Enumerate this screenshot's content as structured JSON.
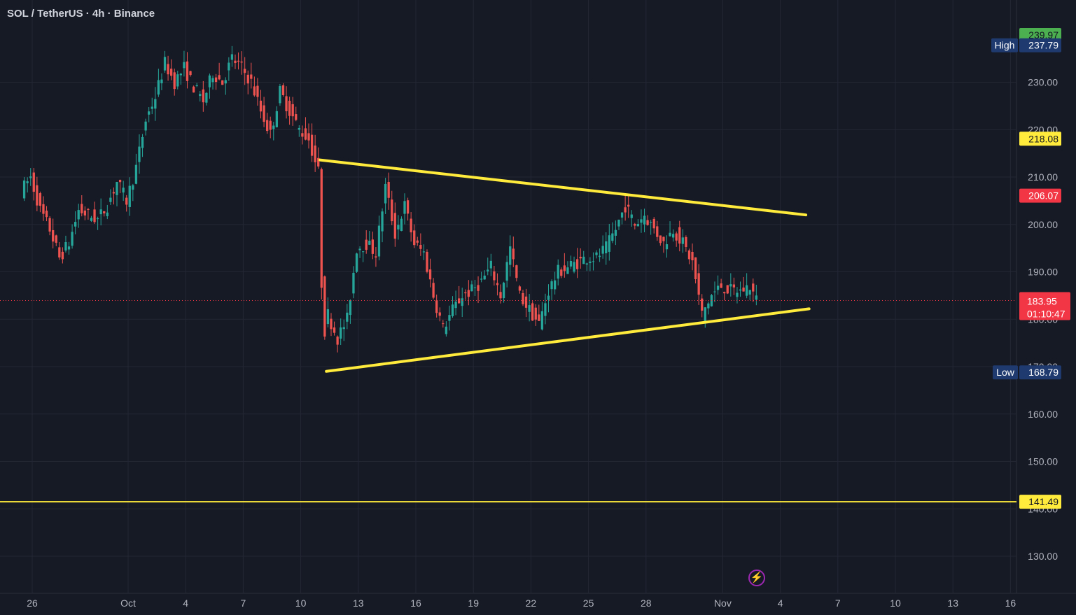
{
  "header": {
    "title": "SOL / TetherUS · 4h · Binance"
  },
  "colors": {
    "up": "#26a69a",
    "down": "#ef5350",
    "grid": "#232734",
    "trend": "#ffeb3b"
  },
  "chart_data": {
    "type": "candlestick",
    "symbol": "SOL / TetherUS",
    "interval": "4h",
    "exchange": "Binance",
    "x_ticks": [
      {
        "label": "26",
        "date": "2024-09-26"
      },
      {
        "label": "Oct",
        "date": "2024-10-01"
      },
      {
        "label": "4",
        "date": "2024-10-04"
      },
      {
        "label": "7",
        "date": "2024-10-07"
      },
      {
        "label": "10",
        "date": "2024-10-10"
      },
      {
        "label": "13",
        "date": "2024-10-13"
      },
      {
        "label": "16",
        "date": "2024-10-16"
      },
      {
        "label": "19",
        "date": "2024-10-19"
      },
      {
        "label": "22",
        "date": "2024-10-22"
      },
      {
        "label": "25",
        "date": "2024-10-25"
      },
      {
        "label": "28",
        "date": "2024-10-28"
      },
      {
        "label": "Nov",
        "date": "2024-11-01"
      },
      {
        "label": "4",
        "date": "2024-11-04"
      },
      {
        "label": "7",
        "date": "2024-11-07"
      },
      {
        "label": "10",
        "date": "2024-11-10"
      },
      {
        "label": "13",
        "date": "2024-11-13"
      },
      {
        "label": "16",
        "date": "2024-11-16"
      }
    ],
    "y_ticks": [
      "130.00",
      "140.00",
      "150.00",
      "160.00",
      "170.00",
      "180.00",
      "190.00",
      "200.00",
      "210.00",
      "220.00",
      "230.00"
    ],
    "ylim": [
      124,
      243
    ],
    "price_path": [
      {
        "date": "2024-09-25 12:00",
        "price": 207
      },
      {
        "date": "2024-09-26 00:00",
        "price": 210
      },
      {
        "date": "2024-09-26 12:00",
        "price": 203
      },
      {
        "date": "2024-09-27 00:00",
        "price": 199
      },
      {
        "date": "2024-09-27 12:00",
        "price": 193
      },
      {
        "date": "2024-09-28 00:00",
        "price": 196
      },
      {
        "date": "2024-09-28 12:00",
        "price": 203
      },
      {
        "date": "2024-09-29 00:00",
        "price": 202
      },
      {
        "date": "2024-09-29 12:00",
        "price": 201
      },
      {
        "date": "2024-09-30 00:00",
        "price": 204
      },
      {
        "date": "2024-09-30 12:00",
        "price": 209
      },
      {
        "date": "2024-10-01 00:00",
        "price": 205
      },
      {
        "date": "2024-10-01 12:00",
        "price": 212
      },
      {
        "date": "2024-10-02 00:00",
        "price": 222
      },
      {
        "date": "2024-10-02 12:00",
        "price": 227
      },
      {
        "date": "2024-10-03 00:00",
        "price": 234
      },
      {
        "date": "2024-10-03 12:00",
        "price": 230
      },
      {
        "date": "2024-10-04 00:00",
        "price": 233
      },
      {
        "date": "2024-10-04 12:00",
        "price": 229
      },
      {
        "date": "2024-10-05 00:00",
        "price": 226
      },
      {
        "date": "2024-10-05 12:00",
        "price": 232
      },
      {
        "date": "2024-10-06 00:00",
        "price": 230
      },
      {
        "date": "2024-10-06 12:00",
        "price": 235
      },
      {
        "date": "2024-10-07 00:00",
        "price": 233
      },
      {
        "date": "2024-10-07 12:00",
        "price": 230
      },
      {
        "date": "2024-10-08 00:00",
        "price": 224
      },
      {
        "date": "2024-10-08 12:00",
        "price": 219
      },
      {
        "date": "2024-10-09 00:00",
        "price": 228
      },
      {
        "date": "2024-10-09 12:00",
        "price": 224
      },
      {
        "date": "2024-10-10 00:00",
        "price": 220
      },
      {
        "date": "2024-10-10 12:00",
        "price": 218
      },
      {
        "date": "2024-10-11 00:00",
        "price": 211
      },
      {
        "date": "2024-10-11 06:00",
        "price": 176
      },
      {
        "date": "2024-10-11 12:00",
        "price": 181
      },
      {
        "date": "2024-10-12 00:00",
        "price": 176
      },
      {
        "date": "2024-10-12 12:00",
        "price": 180
      },
      {
        "date": "2024-10-13 00:00",
        "price": 195
      },
      {
        "date": "2024-10-13 12:00",
        "price": 196
      },
      {
        "date": "2024-10-14 00:00",
        "price": 194
      },
      {
        "date": "2024-10-14 12:00",
        "price": 208
      },
      {
        "date": "2024-10-15 00:00",
        "price": 198
      },
      {
        "date": "2024-10-15 12:00",
        "price": 204
      },
      {
        "date": "2024-10-16 00:00",
        "price": 196
      },
      {
        "date": "2024-10-16 12:00",
        "price": 194
      },
      {
        "date": "2024-10-17 00:00",
        "price": 185
      },
      {
        "date": "2024-10-17 12:00",
        "price": 178
      },
      {
        "date": "2024-10-18 00:00",
        "price": 182
      },
      {
        "date": "2024-10-18 12:00",
        "price": 185
      },
      {
        "date": "2024-10-19 00:00",
        "price": 186
      },
      {
        "date": "2024-10-19 12:00",
        "price": 188
      },
      {
        "date": "2024-10-20 00:00",
        "price": 191
      },
      {
        "date": "2024-10-20 12:00",
        "price": 185
      },
      {
        "date": "2024-10-21 00:00",
        "price": 195
      },
      {
        "date": "2024-10-21 12:00",
        "price": 185
      },
      {
        "date": "2024-10-22 00:00",
        "price": 182
      },
      {
        "date": "2024-10-22 12:00",
        "price": 179
      },
      {
        "date": "2024-10-23 00:00",
        "price": 186
      },
      {
        "date": "2024-10-23 12:00",
        "price": 190
      },
      {
        "date": "2024-10-24 00:00",
        "price": 191
      },
      {
        "date": "2024-10-24 12:00",
        "price": 192
      },
      {
        "date": "2024-10-25 00:00",
        "price": 193
      },
      {
        "date": "2024-10-25 12:00",
        "price": 193
      },
      {
        "date": "2024-10-26 00:00",
        "price": 195
      },
      {
        "date": "2024-10-26 12:00",
        "price": 199
      },
      {
        "date": "2024-10-27 00:00",
        "price": 204
      },
      {
        "date": "2024-10-27 12:00",
        "price": 200
      },
      {
        "date": "2024-10-28 00:00",
        "price": 202
      },
      {
        "date": "2024-10-28 12:00",
        "price": 199
      },
      {
        "date": "2024-10-29 00:00",
        "price": 196
      },
      {
        "date": "2024-10-29 12:00",
        "price": 199
      },
      {
        "date": "2024-10-30 00:00",
        "price": 196
      },
      {
        "date": "2024-10-30 12:00",
        "price": 192
      },
      {
        "date": "2024-10-31 00:00",
        "price": 181
      },
      {
        "date": "2024-10-31 12:00",
        "price": 185
      },
      {
        "date": "2024-11-01 00:00",
        "price": 187
      },
      {
        "date": "2024-11-01 12:00",
        "price": 186
      },
      {
        "date": "2024-11-02 00:00",
        "price": 186
      },
      {
        "date": "2024-11-02 12:00",
        "price": 187
      },
      {
        "date": "2024-11-02 20:00",
        "price": 184
      }
    ],
    "trendlines": [
      {
        "name": "upper",
        "from": {
          "date": "2024-10-11 00:00",
          "price": 213.6
        },
        "to": {
          "date": "2024-11-05 08:00",
          "price": 202.0
        }
      },
      {
        "name": "lower",
        "from": {
          "date": "2024-10-11 08:00",
          "price": 169.0
        },
        "to": {
          "date": "2024-11-05 12:00",
          "price": 182.2
        }
      }
    ],
    "horizontal_line": {
      "price": 141.49
    },
    "price_labels": {
      "top": {
        "text": "239.97",
        "price": 239.97,
        "color": "#4caf50"
      },
      "high": {
        "label": "High",
        "text": "237.79",
        "price": 237.79
      },
      "level_218": {
        "text": "218.08",
        "price": 218.08,
        "color": "#ffeb3b"
      },
      "level_206": {
        "text": "206.07",
        "price": 206.07,
        "color": "#f23645"
      },
      "last": {
        "text": "183.95",
        "price": 183.95,
        "countdown": "01:10:47"
      },
      "low": {
        "label": "Low",
        "text": "168.79",
        "price": 168.79
      },
      "level_141": {
        "text": "141.49",
        "price": 141.49,
        "color": "#ffeb3b"
      }
    }
  }
}
